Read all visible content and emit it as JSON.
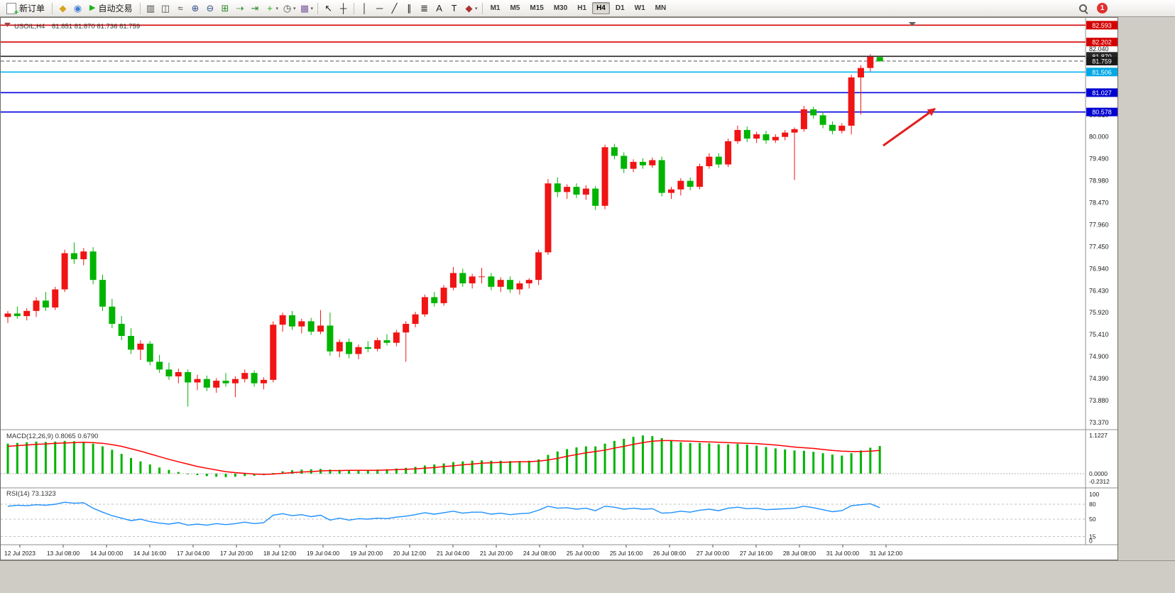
{
  "toolbar": {
    "new_order_label": "新订单",
    "auto_trading_label": "自动交易",
    "misc_icons": [
      "metaeditor-icon",
      "experts-icon"
    ],
    "chart_tools": [
      "bars-icon",
      "candles-icon",
      "line-chart-icon",
      "zoom-in-icon",
      "zoom-out-icon",
      "tile-windows-icon",
      "auto-scroll-icon",
      "chart-shift-icon",
      "indicators-icon",
      "periods-icon",
      "templates-icon"
    ],
    "cursor_tools": [
      "cursor-icon",
      "crosshair-icon"
    ],
    "line_tools": [
      "vertical-line-icon",
      "horizontal-line-icon",
      "trendline-icon",
      "channel-icon",
      "fibonacci-icon",
      "text-icon",
      "label-icon",
      "arrows-icon"
    ],
    "timeframes": [
      "M1",
      "M5",
      "M15",
      "M30",
      "H1",
      "H4",
      "D1",
      "W1",
      "MN"
    ],
    "active_timeframe": "H4",
    "notification_count": "1"
  },
  "chart": {
    "symbol_header": "USOIL,H4",
    "ohlc_header": "81.851 81.870 81.736 81.759",
    "y_axis_labels": [
      "82.040",
      "81.530",
      "81.020",
      "80.510",
      "80.000",
      "79.490",
      "78.980",
      "78.470",
      "77.960",
      "77.450",
      "76.940",
      "76.430",
      "75.920",
      "75.410",
      "74.900",
      "74.390",
      "73.880",
      "73.370"
    ],
    "x_axis_labels": [
      "12 Jul 2023",
      "13 Jul 08:00",
      "14 Jul 00:00",
      "14 Jul 16:00",
      "17 Jul 04:00",
      "17 Jul 20:00",
      "18 Jul 12:00",
      "19 Jul 04:00",
      "19 Jul 20:00",
      "20 Jul 12:00",
      "21 Jul 04:00",
      "21 Jul 20:00",
      "24 Jul 08:00",
      "25 Jul 00:00",
      "25 Jul 16:00",
      "26 Jul 08:00",
      "27 Jul 00:00",
      "27 Jul 16:00",
      "28 Jul 08:00",
      "31 Jul 00:00",
      "31 Jul 12:00"
    ],
    "levels": [
      {
        "label": "82.593",
        "price": 82.593,
        "color": "#d40000",
        "style": "solid",
        "badge": "#d40000"
      },
      {
        "label": "82.202",
        "price": 82.202,
        "color": "#d40000",
        "style": "solid",
        "badge": "#d40000"
      },
      {
        "label": "81.870",
        "price": 81.87,
        "color": "#262626",
        "style": "solid",
        "badge": "#262626"
      },
      {
        "label": "81.759",
        "price": 81.759,
        "color": "#555555",
        "style": "dashed",
        "badge": "#1a1a1a"
      },
      {
        "label": "81.506",
        "price": 81.506,
        "color": "#00b4f0",
        "style": "solid",
        "badge": "#00a8e6"
      },
      {
        "label": "81.027",
        "price": 81.027,
        "color": "#0000e0",
        "style": "solid",
        "badge": "#0000d0"
      },
      {
        "label": "80.578",
        "price": 80.578,
        "color": "#0000e0",
        "style": "solid",
        "badge": "#0000d0"
      }
    ]
  },
  "chart_data": {
    "type": "candlestick",
    "symbol": "USOIL",
    "timeframe": "H4",
    "convention": "red-up-green-down",
    "up_color": "#f01414",
    "down_color": "#00b400",
    "current_ohlc": {
      "open": 81.851,
      "high": 81.87,
      "low": 81.736,
      "close": 81.759
    },
    "candles": [
      [
        75.82,
        75.96,
        75.68,
        75.9
      ],
      [
        75.9,
        76.06,
        75.78,
        75.84
      ],
      [
        75.84,
        76.02,
        75.74,
        75.96
      ],
      [
        75.96,
        76.28,
        75.82,
        76.2
      ],
      [
        76.2,
        76.4,
        75.96,
        76.04
      ],
      [
        76.04,
        76.52,
        75.98,
        76.46
      ],
      [
        76.46,
        77.38,
        76.4,
        77.3
      ],
      [
        77.3,
        77.55,
        77.05,
        77.16
      ],
      [
        77.16,
        77.42,
        77.02,
        77.34
      ],
      [
        77.34,
        77.44,
        76.58,
        76.68
      ],
      [
        76.68,
        76.8,
        75.96,
        76.06
      ],
      [
        76.06,
        76.24,
        75.56,
        75.66
      ],
      [
        75.66,
        75.84,
        75.28,
        75.38
      ],
      [
        75.38,
        75.56,
        74.96,
        75.06
      ],
      [
        75.06,
        75.28,
        74.82,
        75.2
      ],
      [
        75.2,
        75.26,
        74.7,
        74.78
      ],
      [
        74.78,
        74.94,
        74.52,
        74.6
      ],
      [
        74.6,
        74.76,
        74.36,
        74.44
      ],
      [
        74.44,
        74.62,
        74.28,
        74.54
      ],
      [
        74.54,
        74.6,
        73.74,
        74.3
      ],
      [
        74.3,
        74.48,
        74.12,
        74.38
      ],
      [
        74.38,
        74.46,
        74.1,
        74.18
      ],
      [
        74.18,
        74.4,
        74.06,
        74.34
      ],
      [
        74.34,
        74.52,
        74.2,
        74.28
      ],
      [
        74.28,
        74.44,
        73.96,
        74.38
      ],
      [
        74.38,
        74.6,
        74.3,
        74.52
      ],
      [
        74.52,
        74.58,
        74.2,
        74.28
      ],
      [
        74.28,
        74.42,
        74.14,
        74.36
      ],
      [
        74.36,
        75.72,
        74.3,
        75.64
      ],
      [
        75.64,
        75.92,
        75.48,
        75.86
      ],
      [
        75.86,
        75.96,
        75.52,
        75.6
      ],
      [
        75.6,
        75.78,
        75.44,
        75.72
      ],
      [
        75.72,
        75.8,
        75.4,
        75.48
      ],
      [
        75.48,
        75.98,
        75.42,
        75.62
      ],
      [
        75.62,
        75.92,
        74.92,
        75.02
      ],
      [
        75.02,
        75.3,
        74.88,
        75.24
      ],
      [
        75.24,
        75.32,
        74.86,
        74.96
      ],
      [
        74.96,
        75.18,
        74.84,
        75.12
      ],
      [
        75.12,
        75.26,
        75.0,
        75.08
      ],
      [
        75.08,
        75.34,
        75.02,
        75.28
      ],
      [
        75.28,
        75.42,
        75.16,
        75.22
      ],
      [
        75.22,
        75.52,
        75.14,
        75.46
      ],
      [
        75.46,
        75.72,
        74.78,
        75.66
      ],
      [
        75.66,
        75.94,
        75.58,
        75.88
      ],
      [
        75.88,
        76.34,
        75.82,
        76.28
      ],
      [
        76.28,
        76.4,
        76.06,
        76.14
      ],
      [
        76.14,
        76.56,
        76.08,
        76.5
      ],
      [
        76.5,
        76.98,
        76.44,
        76.84
      ],
      [
        76.84,
        76.94,
        76.52,
        76.6
      ],
      [
        76.6,
        76.82,
        76.48,
        76.76
      ],
      [
        76.76,
        76.96,
        76.6,
        76.76
      ],
      [
        76.76,
        76.84,
        76.44,
        76.52
      ],
      [
        76.52,
        76.74,
        76.4,
        76.68
      ],
      [
        76.68,
        76.76,
        76.38,
        76.46
      ],
      [
        76.46,
        76.66,
        76.34,
        76.6
      ],
      [
        76.6,
        76.72,
        76.48,
        76.68
      ],
      [
        76.68,
        77.38,
        76.56,
        77.32
      ],
      [
        77.32,
        79.02,
        77.26,
        78.92
      ],
      [
        78.92,
        79.06,
        78.6,
        78.72
      ],
      [
        78.72,
        78.9,
        78.56,
        78.84
      ],
      [
        78.84,
        78.92,
        78.58,
        78.66
      ],
      [
        78.66,
        78.88,
        78.54,
        78.8
      ],
      [
        78.8,
        78.86,
        78.3,
        78.4
      ],
      [
        78.4,
        79.82,
        78.32,
        79.76
      ],
      [
        79.76,
        79.84,
        79.48,
        79.56
      ],
      [
        79.56,
        79.64,
        79.16,
        79.26
      ],
      [
        79.26,
        79.48,
        79.18,
        79.42
      ],
      [
        79.42,
        79.5,
        79.26,
        79.34
      ],
      [
        79.34,
        79.52,
        79.28,
        79.46
      ],
      [
        79.46,
        79.54,
        78.62,
        78.7
      ],
      [
        78.7,
        78.84,
        78.56,
        78.78
      ],
      [
        78.78,
        79.04,
        78.64,
        78.98
      ],
      [
        78.98,
        79.06,
        78.76,
        78.84
      ],
      [
        78.84,
        79.38,
        78.78,
        79.32
      ],
      [
        79.32,
        79.62,
        79.26,
        79.54
      ],
      [
        79.54,
        79.62,
        79.28,
        79.36
      ],
      [
        79.36,
        79.96,
        79.3,
        79.9
      ],
      [
        79.9,
        80.26,
        79.84,
        80.16
      ],
      [
        80.16,
        80.24,
        79.88,
        79.96
      ],
      [
        79.96,
        80.12,
        79.86,
        80.06
      ],
      [
        80.06,
        80.14,
        79.84,
        79.92
      ],
      [
        79.92,
        80.06,
        79.86,
        80.0
      ],
      [
        80.0,
        80.16,
        79.92,
        80.1
      ],
      [
        80.1,
        80.22,
        79.0,
        80.18
      ],
      [
        80.18,
        80.72,
        80.12,
        80.64
      ],
      [
        80.64,
        80.7,
        80.42,
        80.5
      ],
      [
        80.5,
        80.58,
        80.2,
        80.28
      ],
      [
        80.28,
        80.36,
        80.06,
        80.14
      ],
      [
        80.14,
        80.32,
        80.08,
        80.26
      ],
      [
        80.26,
        81.44,
        80.06,
        81.38
      ],
      [
        81.38,
        81.66,
        80.52,
        81.6
      ],
      [
        81.6,
        81.92,
        81.52,
        81.86
      ],
      [
        81.851,
        81.87,
        81.736,
        81.759
      ]
    ],
    "macd": {
      "label": "MACD(12,26,9) 0.8065 0.6790",
      "axis_labels": [
        "1.1227",
        "0.0000",
        "-0.2312"
      ],
      "color_histogram": "#00b400",
      "color_signal": "#ff0000",
      "histogram": [
        0.88,
        0.9,
        0.92,
        0.94,
        0.93,
        0.94,
        0.96,
        0.95,
        0.93,
        0.88,
        0.8,
        0.7,
        0.58,
        0.46,
        0.36,
        0.27,
        0.18,
        0.11,
        0.05,
        0.0,
        -0.04,
        -0.07,
        -0.09,
        -0.1,
        -0.09,
        -0.07,
        -0.06,
        -0.04,
        0.02,
        0.07,
        0.1,
        0.12,
        0.13,
        0.14,
        0.12,
        0.11,
        0.1,
        0.1,
        0.11,
        0.12,
        0.13,
        0.15,
        0.17,
        0.2,
        0.24,
        0.27,
        0.3,
        0.34,
        0.36,
        0.38,
        0.39,
        0.38,
        0.38,
        0.37,
        0.37,
        0.38,
        0.42,
        0.55,
        0.65,
        0.72,
        0.77,
        0.8,
        0.8,
        0.88,
        0.96,
        1.02,
        1.08,
        1.12,
        1.1,
        1.04,
        0.97,
        0.92,
        0.9,
        0.9,
        0.89,
        0.86,
        0.86,
        0.87,
        0.85,
        0.82,
        0.78,
        0.74,
        0.71,
        0.68,
        0.67,
        0.64,
        0.6,
        0.56,
        0.53,
        0.6,
        0.68,
        0.76,
        0.81
      ],
      "signal": [
        0.8,
        0.82,
        0.84,
        0.86,
        0.87,
        0.89,
        0.9,
        0.91,
        0.92,
        0.91,
        0.89,
        0.85,
        0.8,
        0.73,
        0.66,
        0.58,
        0.5,
        0.42,
        0.35,
        0.28,
        0.21,
        0.16,
        0.11,
        0.06,
        0.03,
        0.01,
        -0.01,
        -0.02,
        -0.01,
        0.01,
        0.03,
        0.05,
        0.06,
        0.08,
        0.09,
        0.09,
        0.1,
        0.1,
        0.1,
        0.1,
        0.11,
        0.12,
        0.13,
        0.14,
        0.16,
        0.18,
        0.21,
        0.23,
        0.26,
        0.28,
        0.31,
        0.32,
        0.33,
        0.34,
        0.35,
        0.35,
        0.37,
        0.4,
        0.45,
        0.51,
        0.56,
        0.61,
        0.65,
        0.69,
        0.75,
        0.8,
        0.86,
        0.91,
        0.95,
        0.97,
        0.97,
        0.96,
        0.95,
        0.94,
        0.93,
        0.92,
        0.91,
        0.9,
        0.89,
        0.88,
        0.86,
        0.84,
        0.81,
        0.78,
        0.76,
        0.74,
        0.71,
        0.68,
        0.66,
        0.65,
        0.65,
        0.66,
        0.68
      ]
    },
    "rsi": {
      "label": "RSI(14) 73.1323",
      "axis_labels": [
        "100",
        "80",
        "50",
        "15",
        "0"
      ],
      "levels": [
        80,
        50,
        15
      ],
      "color": "#1e90ff",
      "values": [
        76,
        78,
        77,
        79,
        78,
        80,
        84,
        82,
        83,
        72,
        64,
        57,
        52,
        47,
        50,
        45,
        42,
        40,
        43,
        38,
        40,
        38,
        41,
        39,
        41,
        44,
        41,
        43,
        58,
        61,
        57,
        59,
        55,
        58,
        48,
        52,
        48,
        51,
        50,
        52,
        51,
        54,
        56,
        59,
        63,
        60,
        63,
        66,
        62,
        64,
        64,
        60,
        62,
        59,
        61,
        62,
        68,
        76,
        72,
        73,
        70,
        72,
        67,
        76,
        74,
        70,
        72,
        70,
        71,
        62,
        63,
        66,
        64,
        68,
        70,
        67,
        72,
        74,
        71,
        72,
        69,
        70,
        71,
        72,
        76,
        73,
        69,
        65,
        67,
        77,
        79,
        81,
        73.13
      ]
    }
  },
  "annotation": {
    "arrow_color": "#e02020"
  }
}
